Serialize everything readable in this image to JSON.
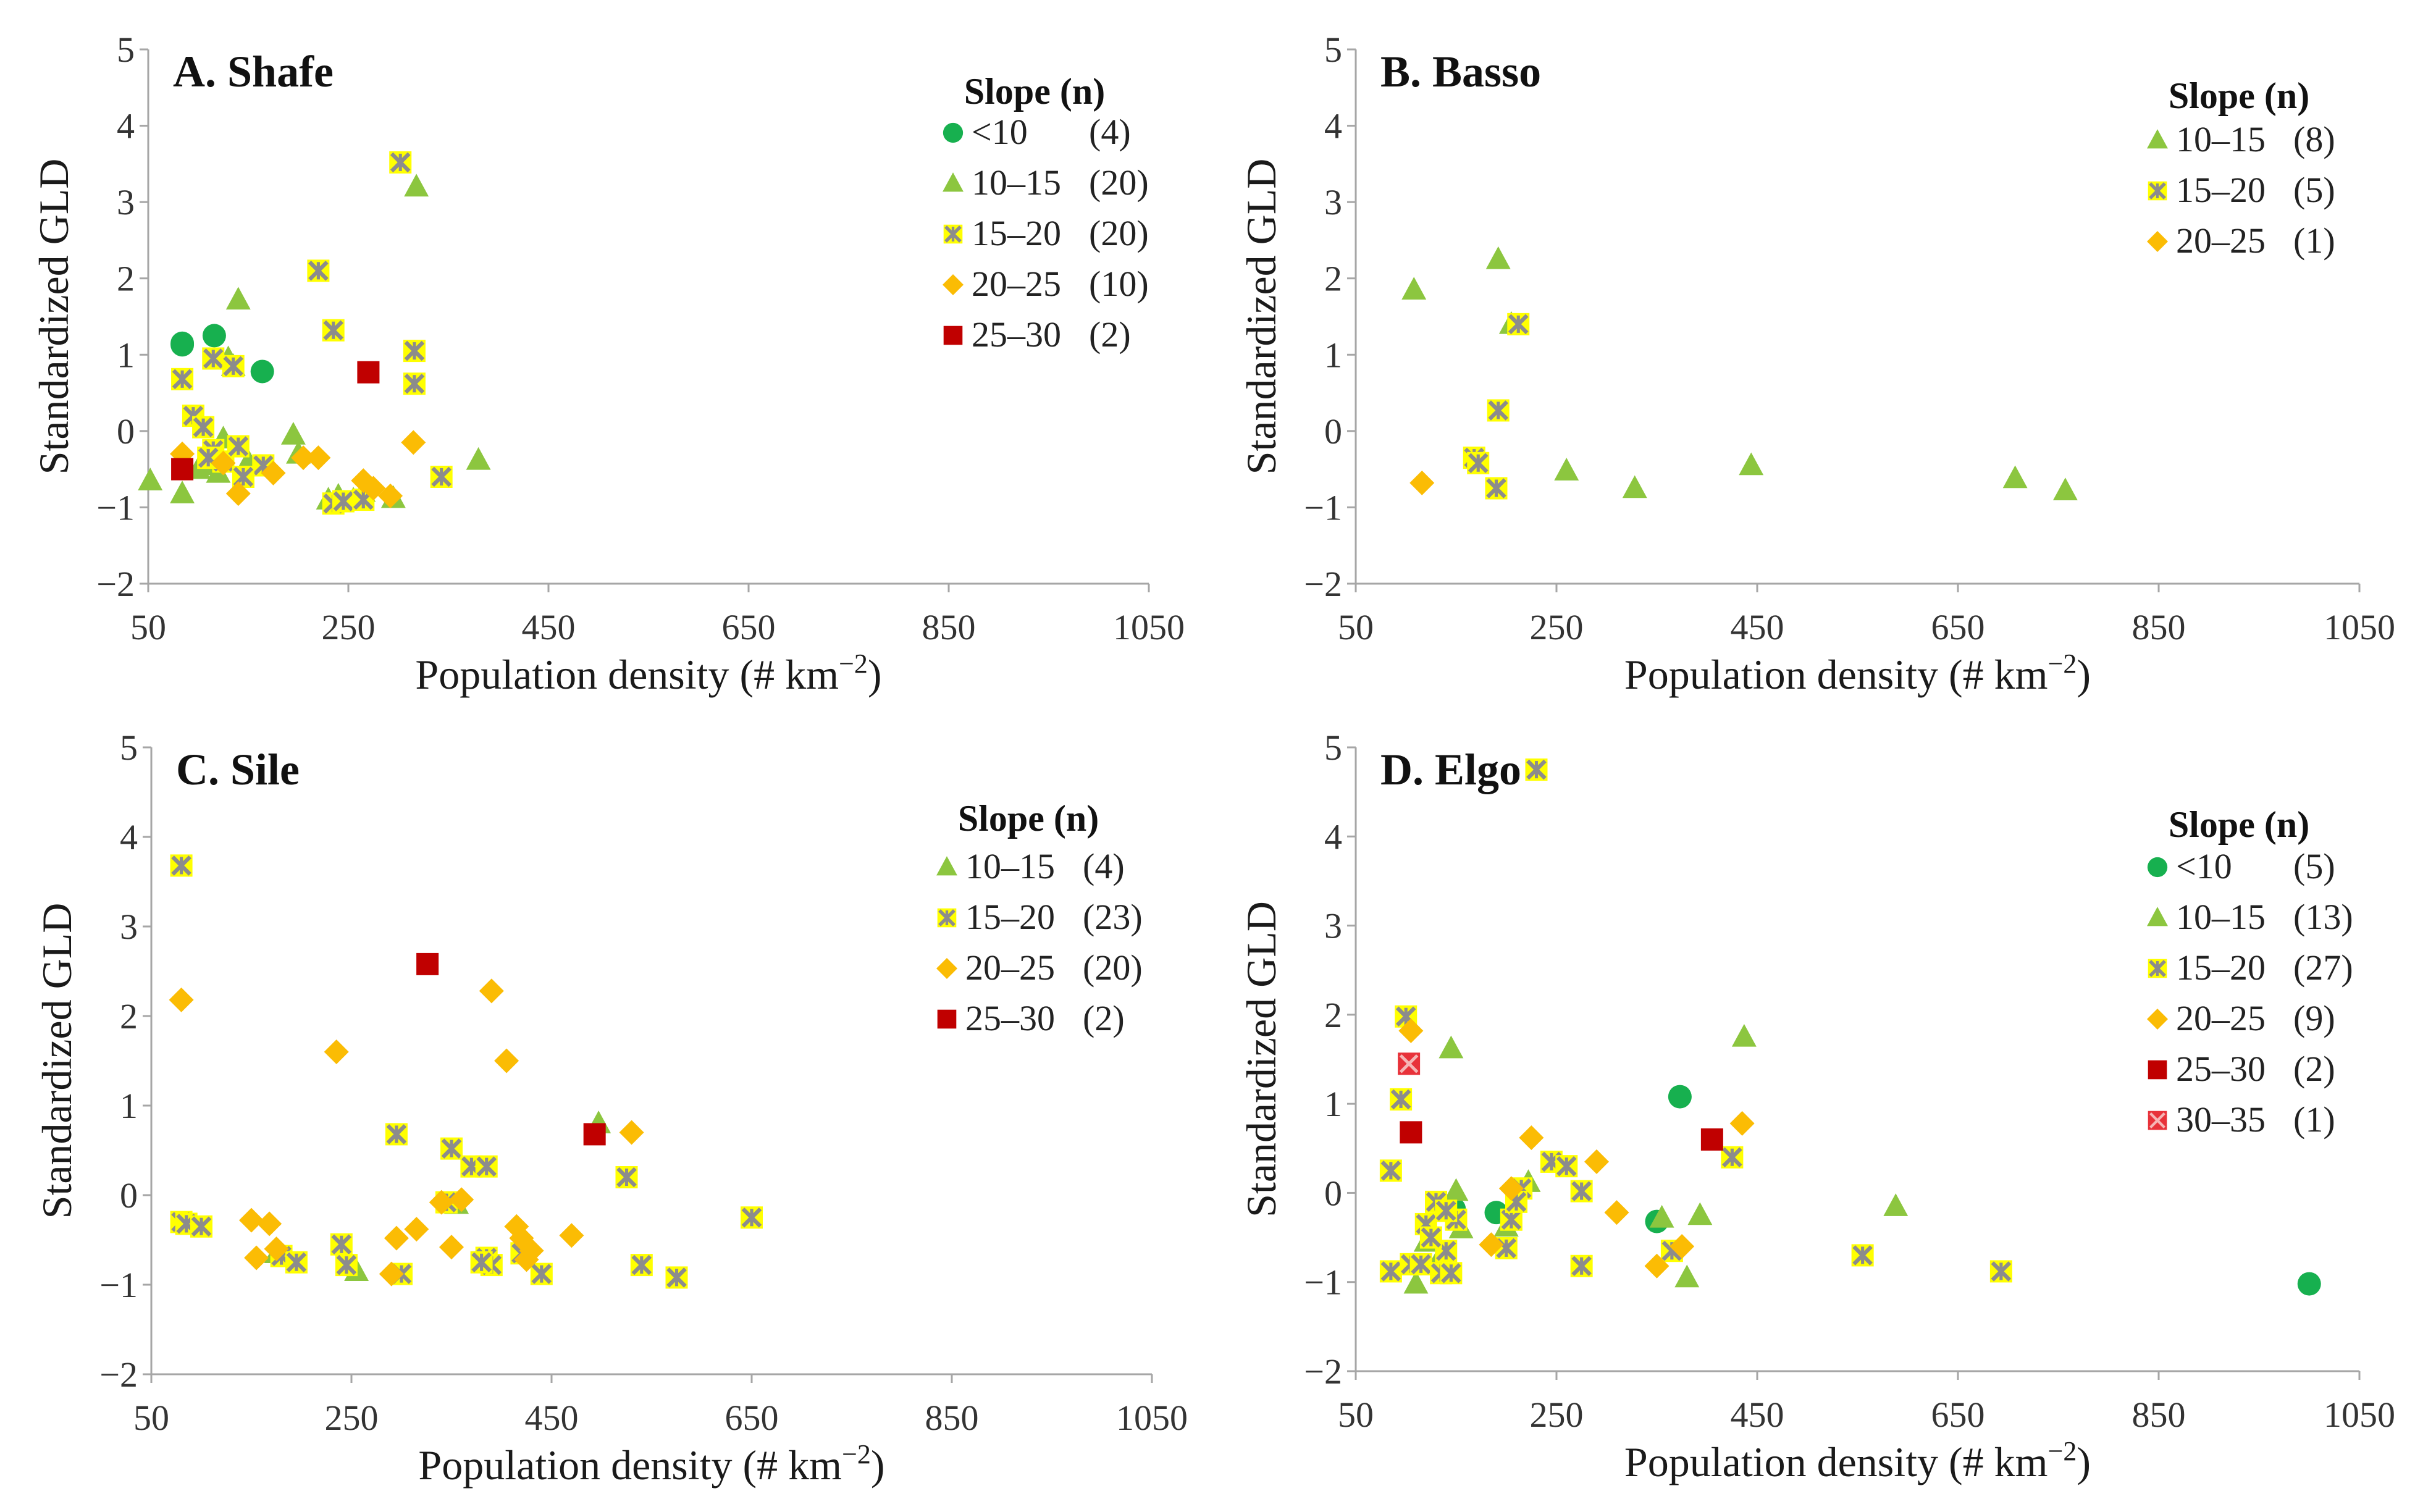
{
  "chart_data": [
    {
      "type": "scatter",
      "id": "A",
      "title": "A. Shafe",
      "xlabel": "Population density (# km−2)",
      "xlabel_base": "Population density (# km",
      "xlabel_sup": "−2",
      "xlabel_end": ")",
      "ylabel": "Standardized GLD",
      "xlim": [
        50,
        1050
      ],
      "ylim": [
        -2,
        5
      ],
      "xticks": [
        50,
        250,
        450,
        650,
        850,
        1050
      ],
      "yticks": [
        5,
        4,
        3,
        2,
        1,
        0,
        -1,
        -2
      ],
      "ytick_labels": [
        "5",
        "4",
        "3",
        "2",
        "1",
        "0",
        "−1",
        "−2"
      ],
      "legend_title": "Slope (n)",
      "legend": [
        {
          "key": "lt10",
          "label": "<10",
          "count": "(4)"
        },
        {
          "key": "10-15",
          "label": "10–15",
          "count": "(20)"
        },
        {
          "key": "15-20",
          "label": "15–20",
          "count": "(20)"
        },
        {
          "key": "20-25",
          "label": "20–25",
          "count": "(10)"
        },
        {
          "key": "25-30",
          "label": "25–30",
          "count": "(2)"
        }
      ],
      "series": [
        {
          "key": "lt10",
          "name": "<10",
          "points": [
            [
              84,
              1.15
            ],
            [
              116,
              1.25
            ],
            [
              164,
              0.78
            ],
            [
              84,
              1.13
            ]
          ]
        },
        {
          "key": "10-15",
          "name": "10–15",
          "points": [
            [
              52,
              -0.65
            ],
            [
              84,
              -0.82
            ],
            [
              140,
              1.72
            ],
            [
              130,
              0.95
            ],
            [
              100,
              -0.5
            ],
            [
              110,
              -0.3
            ],
            [
              120,
              -0.55
            ],
            [
              125,
              -0.1
            ],
            [
              195,
              -0.05
            ],
            [
              200,
              -0.3
            ],
            [
              240,
              -0.85
            ],
            [
              255,
              -0.9
            ],
            [
              265,
              -0.8
            ],
            [
              295,
              -0.88
            ],
            [
              318,
              3.2
            ],
            [
              380,
              -0.38
            ],
            [
              230,
              -0.9
            ],
            [
              150,
              -0.4
            ],
            [
              110,
              -0.45
            ],
            [
              135,
              0.85
            ]
          ]
        },
        {
          "key": "15-20",
          "name": "15–20",
          "points": [
            [
              84,
              0.68
            ],
            [
              95,
              0.2
            ],
            [
              105,
              0.05
            ],
            [
              115,
              0.95
            ],
            [
              135,
              0.85
            ],
            [
              115,
              -0.25
            ],
            [
              125,
              -0.4
            ],
            [
              140,
              -0.2
            ],
            [
              165,
              -0.45
            ],
            [
              220,
              2.1
            ],
            [
              235,
              1.32
            ],
            [
              235,
              -0.95
            ],
            [
              245,
              -0.92
            ],
            [
              265,
              -0.9
            ],
            [
              302,
              3.52
            ],
            [
              316,
              1.05
            ],
            [
              316,
              0.62
            ],
            [
              343,
              -0.6
            ],
            [
              145,
              -0.6
            ],
            [
              110,
              -0.35
            ]
          ]
        },
        {
          "key": "20-25",
          "name": "20–25",
          "points": [
            [
              84,
              -0.3
            ],
            [
              125,
              -0.42
            ],
            [
              140,
              -0.82
            ],
            [
              175,
              -0.55
            ],
            [
              205,
              -0.35
            ],
            [
              220,
              -0.35
            ],
            [
              265,
              -0.65
            ],
            [
              275,
              -0.75
            ],
            [
              292,
              -0.85
            ],
            [
              315,
              -0.15
            ]
          ]
        },
        {
          "key": "25-30",
          "name": "25–30",
          "points": [
            [
              84,
              -0.5
            ],
            [
              270,
              0.77
            ]
          ]
        }
      ]
    },
    {
      "type": "scatter",
      "id": "B",
      "title": "B. Basso",
      "xlabel": "Population density (# km−2)",
      "xlabel_base": "Population density (# km",
      "xlabel_sup": "−2",
      "xlabel_end": ")",
      "ylabel": "Standardized GLD",
      "xlim": [
        50,
        1050
      ],
      "ylim": [
        -2,
        5
      ],
      "xticks": [
        50,
        250,
        450,
        650,
        850,
        1050
      ],
      "yticks": [
        5,
        4,
        3,
        2,
        1,
        0,
        -1,
        -2
      ],
      "ytick_labels": [
        "5",
        "4",
        "3",
        "2",
        "1",
        "0",
        "−1",
        "−2"
      ],
      "legend_title": "Slope (n)",
      "legend": [
        {
          "key": "10-15",
          "label": "10–15",
          "count": "(8)"
        },
        {
          "key": "15-20",
          "label": "15–20",
          "count": "(5)"
        },
        {
          "key": "20-25",
          "label": "20–25",
          "count": "(1)"
        }
      ],
      "series": [
        {
          "key": "10-15",
          "name": "10–15",
          "points": [
            [
              108,
              1.85
            ],
            [
              192,
              2.25
            ],
            [
              260,
              -0.52
            ],
            [
              328,
              -0.75
            ],
            [
              444,
              -0.45
            ],
            [
              707,
              -0.62
            ],
            [
              757,
              -0.78
            ],
            [
              205,
              1.4
            ]
          ]
        },
        {
          "key": "15-20",
          "name": "15–20",
          "points": [
            [
              168,
              -0.35
            ],
            [
              172,
              -0.42
            ],
            [
              192,
              0.27
            ],
            [
              190,
              -0.75
            ],
            [
              212,
              1.4
            ]
          ]
        },
        {
          "key": "20-25",
          "name": "20–25",
          "points": [
            [
              116,
              -0.68
            ]
          ]
        }
      ]
    },
    {
      "type": "scatter",
      "id": "C",
      "title": "C. Sile",
      "xlabel": "Population density (# km−2)",
      "xlabel_base": "Population density (# km",
      "xlabel_sup": "−2",
      "xlabel_end": ")",
      "ylabel": "Standardized GLD",
      "xlim": [
        50,
        1050
      ],
      "ylim": [
        -2,
        5
      ],
      "xticks": [
        50,
        250,
        450,
        650,
        850,
        1050
      ],
      "yticks": [
        5,
        4,
        3,
        2,
        1,
        0,
        -1,
        -2
      ],
      "ytick_labels": [
        "5",
        "4",
        "3",
        "2",
        "1",
        "0",
        "−1",
        "−2"
      ],
      "legend_title": "Slope (n)",
      "legend": [
        {
          "key": "10-15",
          "label": "10–15",
          "count": "(4)"
        },
        {
          "key": "15-20",
          "label": "15–20",
          "count": "(23)"
        },
        {
          "key": "20-25",
          "label": "20–25",
          "count": "(20)"
        },
        {
          "key": "25-30",
          "label": "25–30",
          "count": "(2)"
        }
      ],
      "series": [
        {
          "key": "10-15",
          "name": "10–15",
          "points": [
            [
              255,
              -0.85
            ],
            [
              497,
              0.8
            ],
            [
              175,
              -0.65
            ],
            [
              355,
              -0.1
            ]
          ]
        },
        {
          "key": "15-20",
          "name": "15–20",
          "points": [
            [
              80,
              3.68
            ],
            [
              80,
              -0.3
            ],
            [
              85,
              -0.32
            ],
            [
              100,
              -0.35
            ],
            [
              180,
              -0.68
            ],
            [
              195,
              -0.75
            ],
            [
              240,
              -0.55
            ],
            [
              245,
              -0.78
            ],
            [
              295,
              0.68
            ],
            [
              300,
              -0.88
            ],
            [
              345,
              -0.08
            ],
            [
              350,
              0.52
            ],
            [
              370,
              0.32
            ],
            [
              385,
              0.32
            ],
            [
              385,
              -0.7
            ],
            [
              390,
              -0.78
            ],
            [
              420,
              -0.65
            ],
            [
              440,
              -0.88
            ],
            [
              525,
              0.2
            ],
            [
              540,
              -0.78
            ],
            [
              575,
              -0.92
            ],
            [
              650,
              -0.25
            ],
            [
              380,
              -0.75
            ]
          ]
        },
        {
          "key": "20-25",
          "name": "20–25",
          "points": [
            [
              80,
              2.18
            ],
            [
              150,
              -0.28
            ],
            [
              155,
              -0.7
            ],
            [
              168,
              -0.32
            ],
            [
              175,
              -0.6
            ],
            [
              235,
              1.6
            ],
            [
              290,
              -0.88
            ],
            [
              295,
              -0.48
            ],
            [
              315,
              -0.38
            ],
            [
              340,
              -0.08
            ],
            [
              350,
              -0.58
            ],
            [
              390,
              2.28
            ],
            [
              405,
              1.5
            ],
            [
              415,
              -0.35
            ],
            [
              420,
              -0.48
            ],
            [
              425,
              -0.72
            ],
            [
              470,
              -0.45
            ],
            [
              530,
              0.7
            ],
            [
              360,
              -0.05
            ],
            [
              430,
              -0.62
            ]
          ]
        },
        {
          "key": "25-30",
          "name": "25–30",
          "points": [
            [
              326,
              2.58
            ],
            [
              493,
              0.68
            ]
          ]
        }
      ]
    },
    {
      "type": "scatter",
      "id": "D",
      "title": "D. Elgo",
      "xlabel": "Population density (# km−2)",
      "xlabel_base": "Population density (# km",
      "xlabel_sup": "−2",
      "xlabel_end": ")",
      "ylabel": "Standardized GLD",
      "xlim": [
        50,
        1050
      ],
      "ylim": [
        -2,
        5
      ],
      "xticks": [
        50,
        250,
        450,
        650,
        850,
        1050
      ],
      "yticks": [
        5,
        4,
        3,
        2,
        1,
        0,
        -1,
        -2
      ],
      "ytick_labels": [
        "5",
        "4",
        "3",
        "2",
        "1",
        "0",
        "−1",
        "−2"
      ],
      "legend_title": "Slope (n)",
      "legend": [
        {
          "key": "lt10",
          "label": "<10",
          "count": "(5)"
        },
        {
          "key": "10-15",
          "label": "10–15",
          "count": "(13)"
        },
        {
          "key": "15-20",
          "label": "15–20",
          "count": "(27)"
        },
        {
          "key": "20-25",
          "label": "20–25",
          "count": "(9)"
        },
        {
          "key": "25-30",
          "label": "25–30",
          "count": "(2)"
        },
        {
          "key": "30-35",
          "label": "30–35",
          "count": "(1)"
        }
      ],
      "series": [
        {
          "key": "lt10",
          "name": "<10",
          "points": [
            [
              190,
              -0.22
            ],
            [
              148,
              -0.18
            ],
            [
              350,
              -0.32
            ],
            [
              373,
              1.08
            ],
            [
              1000,
              -1.02
            ]
          ]
        },
        {
          "key": "10-15",
          "name": "10–15",
          "points": [
            [
              110,
              -1.02
            ],
            [
              120,
              -0.55
            ],
            [
              145,
              1.62
            ],
            [
              150,
              0.02
            ],
            [
              155,
              -0.4
            ],
            [
              200,
              -0.38
            ],
            [
              222,
              0.12
            ],
            [
              355,
              -0.28
            ],
            [
              380,
              -0.95
            ],
            [
              393,
              -0.25
            ],
            [
              437,
              1.75
            ],
            [
              588,
              -0.15
            ],
            [
              130,
              -0.8
            ]
          ]
        },
        {
          "key": "15-20",
          "name": "15–20",
          "points": [
            [
              230,
              4.75
            ],
            [
              85,
              -0.88
            ],
            [
              85,
              0.25
            ],
            [
              95,
              1.05
            ],
            [
              100,
              1.98
            ],
            [
              105,
              -0.8
            ],
            [
              115,
              -0.8
            ],
            [
              120,
              -0.35
            ],
            [
              130,
              -0.1
            ],
            [
              135,
              -0.9
            ],
            [
              140,
              -0.65
            ],
            [
              145,
              -0.9
            ],
            [
              150,
              -0.3
            ],
            [
              200,
              -0.62
            ],
            [
              205,
              -0.3
            ],
            [
              215,
              0.05
            ],
            [
              245,
              0.35
            ],
            [
              260,
              0.3
            ],
            [
              275,
              0.02
            ],
            [
              275,
              -0.82
            ],
            [
              365,
              -0.65
            ],
            [
              425,
              0.4
            ],
            [
              555,
              -0.7
            ],
            [
              693,
              -0.88
            ],
            [
              210,
              -0.1
            ],
            [
              140,
              -0.2
            ],
            [
              125,
              -0.5
            ]
          ]
        },
        {
          "key": "20-25",
          "name": "20–25",
          "points": [
            [
              105,
              1.82
            ],
            [
              185,
              -0.58
            ],
            [
              205,
              0.05
            ],
            [
              225,
              0.62
            ],
            [
              290,
              0.35
            ],
            [
              310,
              -0.22
            ],
            [
              350,
              -0.82
            ],
            [
              375,
              -0.6
            ],
            [
              435,
              0.78
            ]
          ]
        },
        {
          "key": "25-30",
          "name": "25–30",
          "points": [
            [
              105,
              0.68
            ],
            [
              405,
              0.6
            ]
          ]
        },
        {
          "key": "30-35",
          "name": "30–35",
          "points": [
            [
              103,
              1.45
            ]
          ]
        }
      ]
    }
  ],
  "colors": {
    "lt10": "#17b04f",
    "10-15": "#8cc63f",
    "15-20": "#ffff00",
    "15-20-cross": "#8c8c8c",
    "20-25": "#fbbc04",
    "25-30": "#c00000",
    "30-35": "#e8323a",
    "axis": "#a6a6a6",
    "text": "#333333"
  }
}
